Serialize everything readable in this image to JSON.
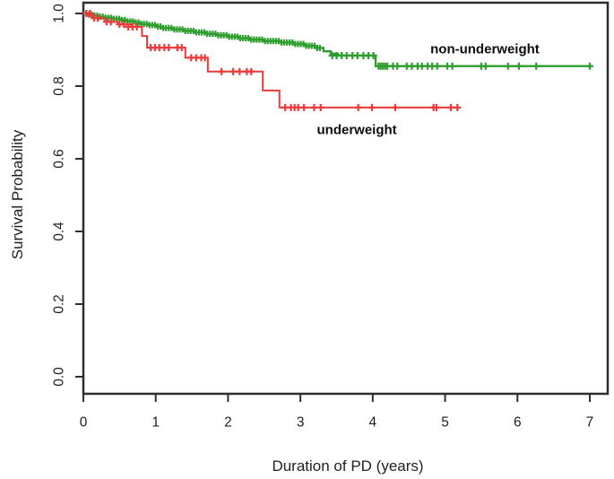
{
  "figure": {
    "background": "#ffffff",
    "axis_color": "#2e2e2e",
    "text_color": "#1f1f1f"
  },
  "chart_data": {
    "type": "line",
    "subtype": "kaplan-meier-step",
    "title": "",
    "xlabel": "Duration of PD (years)",
    "ylabel": "Survival Probability",
    "xlim": [
      0,
      7.25
    ],
    "ylim": [
      0,
      1.04
    ],
    "grid": false,
    "legend_position": "inline-annotations",
    "x_tick_values": [
      0,
      1,
      2,
      3,
      4,
      5,
      6,
      7
    ],
    "x_tick_labels": [
      "0",
      "1",
      "2",
      "3",
      "4",
      "5",
      "6",
      "7"
    ],
    "y_tick_values": [
      0.0,
      0.2,
      0.4,
      0.6,
      0.8,
      1.0
    ],
    "y_tick_labels": [
      "0.0",
      "0.2",
      "0.4",
      "0.6",
      "0.8",
      "1.0"
    ],
    "series": [
      {
        "name": "non-underweight",
        "color": "#2f9e2f",
        "line_width": 2.4,
        "label_anchor": [
          5.55,
          0.902
        ],
        "steps": [
          [
            0,
            1.0
          ],
          [
            0.07,
            0.997
          ],
          [
            0.15,
            0.994
          ],
          [
            0.22,
            0.991
          ],
          [
            0.3,
            0.988
          ],
          [
            0.4,
            0.985
          ],
          [
            0.5,
            0.982
          ],
          [
            0.6,
            0.978
          ],
          [
            0.7,
            0.975
          ],
          [
            0.8,
            0.971
          ],
          [
            0.9,
            0.968
          ],
          [
            1.0,
            0.964
          ],
          [
            1.1,
            0.96
          ],
          [
            1.25,
            0.956
          ],
          [
            1.4,
            0.952
          ],
          [
            1.55,
            0.948
          ],
          [
            1.7,
            0.944
          ],
          [
            1.85,
            0.94
          ],
          [
            2.0,
            0.936
          ],
          [
            2.15,
            0.932
          ],
          [
            2.3,
            0.928
          ],
          [
            2.5,
            0.924
          ],
          [
            2.7,
            0.92
          ],
          [
            2.9,
            0.916
          ],
          [
            3.05,
            0.911
          ],
          [
            3.2,
            0.905
          ],
          [
            3.32,
            0.896
          ],
          [
            3.42,
            0.889
          ],
          [
            3.52,
            0.884
          ],
          [
            4.04,
            0.855
          ]
        ],
        "end_t": 7.03,
        "dense_censors": {
          "t_start": 0.04,
          "t_end": 3.3,
          "step": 0.038
        },
        "censors": [
          [
            3.44,
            0.884
          ],
          [
            3.5,
            0.884
          ],
          [
            3.57,
            0.884
          ],
          [
            3.64,
            0.884
          ],
          [
            3.72,
            0.884
          ],
          [
            3.79,
            0.884
          ],
          [
            3.87,
            0.884
          ],
          [
            3.94,
            0.884
          ],
          [
            4.01,
            0.884
          ],
          [
            4.08,
            0.855
          ],
          [
            4.11,
            0.855
          ],
          [
            4.14,
            0.855
          ],
          [
            4.17,
            0.855
          ],
          [
            4.2,
            0.855
          ],
          [
            4.28,
            0.855
          ],
          [
            4.34,
            0.855
          ],
          [
            4.47,
            0.855
          ],
          [
            4.54,
            0.855
          ],
          [
            4.62,
            0.855
          ],
          [
            4.68,
            0.855
          ],
          [
            4.76,
            0.855
          ],
          [
            4.82,
            0.855
          ],
          [
            4.89,
            0.855
          ],
          [
            5.03,
            0.855
          ],
          [
            5.1,
            0.855
          ],
          [
            5.5,
            0.855
          ],
          [
            5.56,
            0.855
          ],
          [
            5.87,
            0.855
          ],
          [
            6.02,
            0.855
          ],
          [
            6.26,
            0.855
          ],
          [
            7.0,
            0.855
          ]
        ]
      },
      {
        "name": "underweight",
        "color": "#ee3a3a",
        "line_width": 2,
        "label_anchor": [
          3.78,
          0.678
        ],
        "steps": [
          [
            0,
            1.0
          ],
          [
            0.06,
            0.994
          ],
          [
            0.13,
            0.987
          ],
          [
            0.3,
            0.977
          ],
          [
            0.48,
            0.97
          ],
          [
            0.66,
            0.963
          ],
          [
            0.81,
            0.938
          ],
          [
            0.88,
            0.906
          ],
          [
            1.41,
            0.878
          ],
          [
            1.72,
            0.84
          ],
          [
            2.48,
            0.788
          ],
          [
            2.71,
            0.741
          ]
        ],
        "end_t": 5.17,
        "censors": [
          [
            0.04,
            1.0
          ],
          [
            0.09,
            1.0
          ],
          [
            0.15,
            0.987
          ],
          [
            0.2,
            0.987
          ],
          [
            0.32,
            0.977
          ],
          [
            0.38,
            0.977
          ],
          [
            0.5,
            0.97
          ],
          [
            0.56,
            0.97
          ],
          [
            0.62,
            0.963
          ],
          [
            0.68,
            0.963
          ],
          [
            0.74,
            0.963
          ],
          [
            0.93,
            0.906
          ],
          [
            0.99,
            0.906
          ],
          [
            1.05,
            0.906
          ],
          [
            1.12,
            0.906
          ],
          [
            1.18,
            0.906
          ],
          [
            1.3,
            0.906
          ],
          [
            1.36,
            0.906
          ],
          [
            1.49,
            0.878
          ],
          [
            1.56,
            0.878
          ],
          [
            1.63,
            0.878
          ],
          [
            1.68,
            0.878
          ],
          [
            1.91,
            0.84
          ],
          [
            2.07,
            0.84
          ],
          [
            2.16,
            0.84
          ],
          [
            2.26,
            0.84
          ],
          [
            2.32,
            0.84
          ],
          [
            2.79,
            0.741
          ],
          [
            2.87,
            0.741
          ],
          [
            2.92,
            0.741
          ],
          [
            2.97,
            0.741
          ],
          [
            3.05,
            0.741
          ],
          [
            3.19,
            0.741
          ],
          [
            3.28,
            0.741
          ],
          [
            3.8,
            0.741
          ],
          [
            3.99,
            0.741
          ],
          [
            4.31,
            0.741
          ],
          [
            4.84,
            0.741
          ],
          [
            4.88,
            0.741
          ],
          [
            5.08,
            0.741
          ],
          [
            5.17,
            0.741
          ]
        ]
      }
    ]
  }
}
